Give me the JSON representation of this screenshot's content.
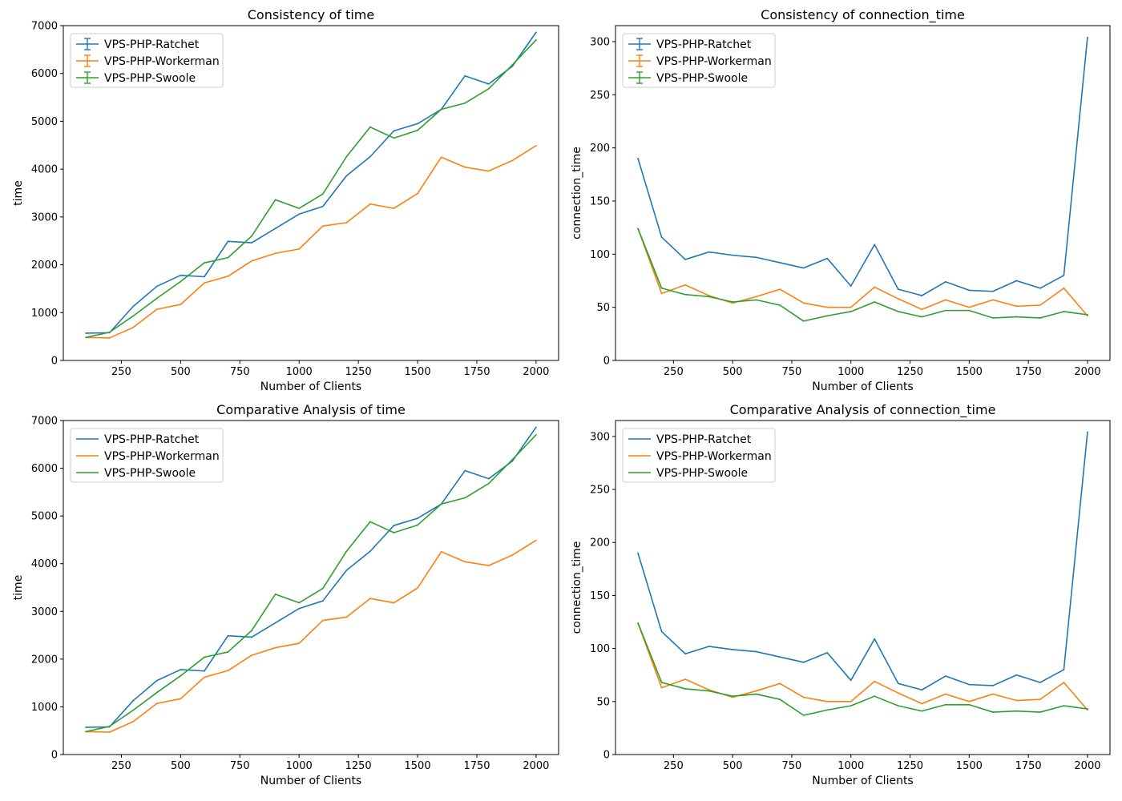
{
  "figure": {
    "colors": {
      "ratchet": "#1f77b4",
      "workerman": "#ff7f0e",
      "swoole": "#2ca02c"
    }
  },
  "chart_data": [
    {
      "type": "line",
      "title": "Consistency of time",
      "xlabel": "Number of Clients",
      "ylabel": "time",
      "legend": "top-left",
      "legend_style": "errorbar",
      "grid": false,
      "xlim": [
        5,
        2095
      ],
      "ylim": [
        0,
        7000
      ],
      "xticks": [
        250,
        500,
        750,
        1000,
        1250,
        1500,
        1750,
        2000
      ],
      "yticks": [
        0,
        1000,
        2000,
        3000,
        4000,
        5000,
        6000,
        7000
      ],
      "x": [
        100,
        200,
        300,
        400,
        500,
        600,
        700,
        800,
        900,
        1000,
        1100,
        1200,
        1300,
        1400,
        1500,
        1600,
        1700,
        1800,
        1900,
        2000
      ],
      "series": [
        {
          "name": "VPS-PHP-Ratchet",
          "color": "#1f77b4",
          "values": [
            570,
            580,
            1130,
            1550,
            1780,
            1750,
            2490,
            2460,
            2760,
            3060,
            3220,
            3860,
            4260,
            4800,
            4950,
            5250,
            5950,
            5780,
            6150,
            6860
          ]
        },
        {
          "name": "VPS-PHP-Workerman",
          "color": "#ff7f0e",
          "values": [
            480,
            470,
            690,
            1070,
            1170,
            1620,
            1760,
            2080,
            2240,
            2330,
            2810,
            2880,
            3270,
            3180,
            3490,
            4250,
            4040,
            3960,
            4180,
            4490
          ]
        },
        {
          "name": "VPS-PHP-Swoole",
          "color": "#2ca02c",
          "values": [
            480,
            590,
            930,
            1300,
            1650,
            2040,
            2150,
            2600,
            3360,
            3180,
            3480,
            4260,
            4880,
            4650,
            4810,
            5250,
            5380,
            5680,
            6180,
            6700
          ]
        }
      ]
    },
    {
      "type": "line",
      "title": "Consistency of connection_time",
      "xlabel": "Number of Clients",
      "ylabel": "connection_time",
      "legend": "top-left",
      "legend_style": "errorbar",
      "grid": false,
      "xlim": [
        5,
        2095
      ],
      "ylim": [
        0,
        315
      ],
      "xticks": [
        250,
        500,
        750,
        1000,
        1250,
        1500,
        1750,
        2000
      ],
      "yticks": [
        0,
        50,
        100,
        150,
        200,
        250,
        300
      ],
      "x": [
        100,
        200,
        300,
        400,
        500,
        600,
        700,
        800,
        900,
        1000,
        1100,
        1200,
        1300,
        1400,
        1500,
        1600,
        1700,
        1800,
        1900,
        2000
      ],
      "series": [
        {
          "name": "VPS-PHP-Ratchet",
          "color": "#1f77b4",
          "values": [
            190,
            116,
            95,
            102,
            99,
            97,
            92,
            87,
            96,
            70,
            109,
            67,
            61,
            74,
            66,
            65,
            75,
            68,
            80,
            304
          ]
        },
        {
          "name": "VPS-PHP-Workerman",
          "color": "#ff7f0e",
          "values": [
            124,
            63,
            71,
            61,
            54,
            60,
            67,
            54,
            50,
            50,
            69,
            58,
            48,
            57,
            50,
            57,
            51,
            52,
            68,
            42
          ]
        },
        {
          "name": "VPS-PHP-Swoole",
          "color": "#2ca02c",
          "values": [
            124,
            68,
            62,
            60,
            55,
            57,
            52,
            37,
            42,
            46,
            55,
            46,
            41,
            47,
            47,
            40,
            41,
            40,
            46,
            43
          ]
        }
      ]
    },
    {
      "type": "line",
      "title": "Comparative Analysis of time",
      "xlabel": "Number of Clients",
      "ylabel": "time",
      "legend": "top-left",
      "legend_style": "line",
      "grid": false,
      "xlim": [
        5,
        2095
      ],
      "ylim": [
        0,
        7000
      ],
      "xticks": [
        250,
        500,
        750,
        1000,
        1250,
        1500,
        1750,
        2000
      ],
      "yticks": [
        0,
        1000,
        2000,
        3000,
        4000,
        5000,
        6000,
        7000
      ],
      "x": [
        100,
        200,
        300,
        400,
        500,
        600,
        700,
        800,
        900,
        1000,
        1100,
        1200,
        1300,
        1400,
        1500,
        1600,
        1700,
        1800,
        1900,
        2000
      ],
      "series": [
        {
          "name": "VPS-PHP-Ratchet",
          "color": "#1f77b4",
          "values": [
            570,
            580,
            1130,
            1550,
            1780,
            1750,
            2490,
            2460,
            2760,
            3060,
            3220,
            3860,
            4260,
            4800,
            4950,
            5250,
            5950,
            5780,
            6150,
            6860
          ]
        },
        {
          "name": "VPS-PHP-Workerman",
          "color": "#ff7f0e",
          "values": [
            480,
            470,
            690,
            1070,
            1170,
            1620,
            1760,
            2080,
            2240,
            2330,
            2810,
            2880,
            3270,
            3180,
            3490,
            4250,
            4040,
            3960,
            4180,
            4490
          ]
        },
        {
          "name": "VPS-PHP-Swoole",
          "color": "#2ca02c",
          "values": [
            480,
            590,
            930,
            1300,
            1650,
            2040,
            2150,
            2600,
            3360,
            3180,
            3480,
            4260,
            4880,
            4650,
            4810,
            5250,
            5380,
            5680,
            6180,
            6700
          ]
        }
      ]
    },
    {
      "type": "line",
      "title": "Comparative Analysis of connection_time",
      "xlabel": "Number of Clients",
      "ylabel": "connection_time",
      "legend": "top-left",
      "legend_style": "line",
      "grid": false,
      "xlim": [
        5,
        2095
      ],
      "ylim": [
        0,
        315
      ],
      "xticks": [
        250,
        500,
        750,
        1000,
        1250,
        1500,
        1750,
        2000
      ],
      "yticks": [
        0,
        50,
        100,
        150,
        200,
        250,
        300
      ],
      "x": [
        100,
        200,
        300,
        400,
        500,
        600,
        700,
        800,
        900,
        1000,
        1100,
        1200,
        1300,
        1400,
        1500,
        1600,
        1700,
        1800,
        1900,
        2000
      ],
      "series": [
        {
          "name": "VPS-PHP-Ratchet",
          "color": "#1f77b4",
          "values": [
            190,
            116,
            95,
            102,
            99,
            97,
            92,
            87,
            96,
            70,
            109,
            67,
            61,
            74,
            66,
            65,
            75,
            68,
            80,
            304
          ]
        },
        {
          "name": "VPS-PHP-Workerman",
          "color": "#ff7f0e",
          "values": [
            124,
            63,
            71,
            61,
            54,
            60,
            67,
            54,
            50,
            50,
            69,
            58,
            48,
            57,
            50,
            57,
            51,
            52,
            68,
            42
          ]
        },
        {
          "name": "VPS-PHP-Swoole",
          "color": "#2ca02c",
          "values": [
            124,
            68,
            62,
            60,
            55,
            57,
            52,
            37,
            42,
            46,
            55,
            46,
            41,
            47,
            47,
            40,
            41,
            40,
            46,
            43
          ]
        }
      ]
    }
  ]
}
